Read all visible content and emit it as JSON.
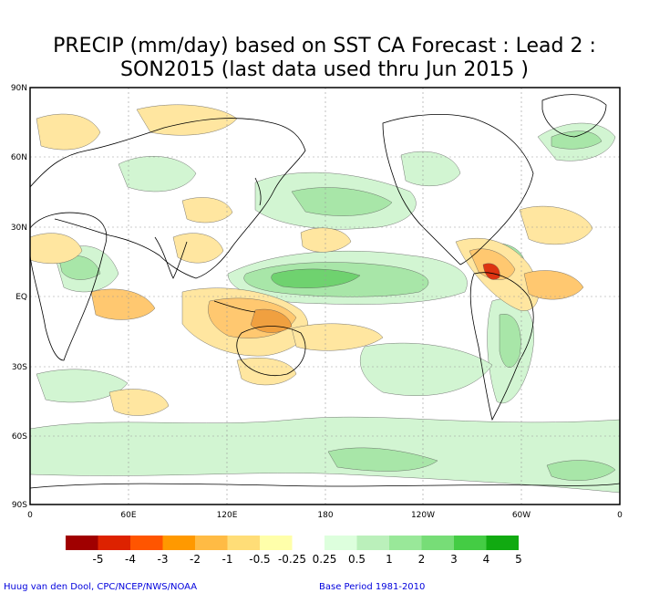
{
  "title": {
    "line1": "PRECIP (mm/day) based on SST CA Forecast : Lead 2 :",
    "line2": "SON2015 (last data used thru Jun 2015 )"
  },
  "axes": {
    "lat_labels": [
      "90N",
      "60N",
      "30N",
      "EQ",
      "30S",
      "60S",
      "90S"
    ],
    "lon_labels": [
      "0",
      "60E",
      "120E",
      "180",
      "120W",
      "60W",
      "0"
    ]
  },
  "colorbar": {
    "labels": [
      "-5",
      "-4",
      "-3",
      "-2",
      "-1",
      "-0.5",
      "-0.25",
      "0.25",
      "0.5",
      "1",
      "2",
      "3",
      "4",
      "5"
    ],
    "colors": [
      "#a00000",
      "#dd2200",
      "#ff5500",
      "#ff9900",
      "#ffbb44",
      "#ffdd77",
      "#ffffaa",
      "#ffffff",
      "#ddffdd",
      "#bbf0bb",
      "#99e899",
      "#77dd77",
      "#44cc44",
      "#11aa11"
    ]
  },
  "credits": {
    "left": "Huug van den Dool, CPC/NCEP/NWS/NOAA",
    "right": "Base Period 1981-2010"
  },
  "map_colors": {
    "wet_light": "#d2f5d2",
    "wet_mid": "#a8e6a8",
    "wet_strong": "#6fd26f",
    "dry_light": "#ffe6a0",
    "dry_mid": "#ffc870",
    "dry_strong": "#f0a040",
    "dry_extreme": "#dd3311",
    "coast": "#000000",
    "grid": "#999999"
  }
}
